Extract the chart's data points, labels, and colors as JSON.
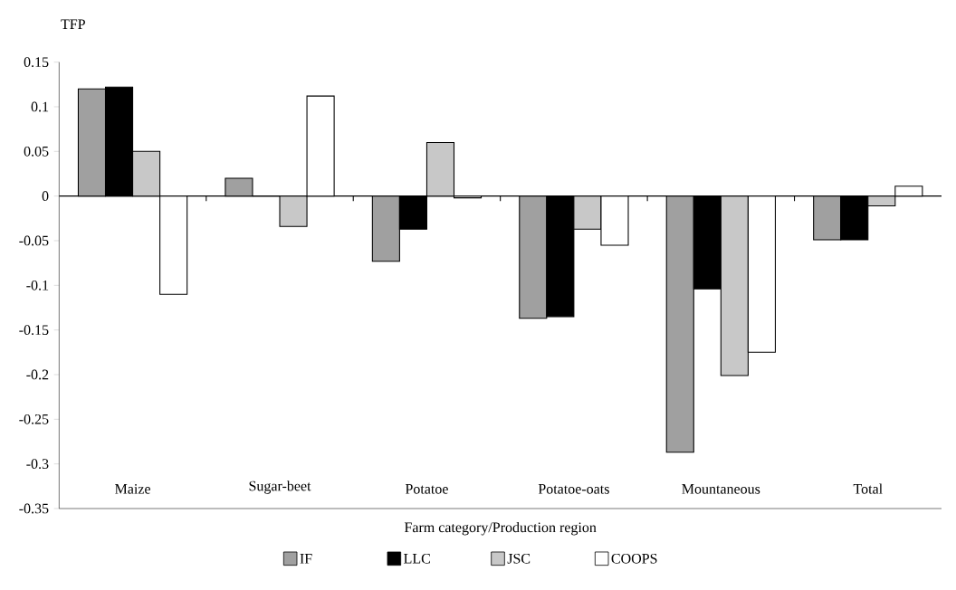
{
  "chart_data": {
    "type": "bar",
    "ylabel": "TFP",
    "xlabel": "Farm category/Production region",
    "categories": [
      "Maize",
      "Sugar-beet",
      "Potatoe",
      "Potatoe-oats",
      "Mountaneous",
      "Total"
    ],
    "series": [
      {
        "name": "IF",
        "color": "#a0a0a0",
        "values": [
          0.12,
          0.02,
          -0.073,
          -0.137,
          -0.287,
          -0.049
        ]
      },
      {
        "name": "LLC",
        "color": "#000000",
        "values": [
          0.122,
          0,
          -0.037,
          -0.135,
          -0.104,
          -0.049
        ]
      },
      {
        "name": "JSC",
        "color": "#c8c8c8",
        "values": [
          0.05,
          -0.034,
          0.06,
          -0.037,
          -0.201,
          -0.011
        ]
      },
      {
        "name": "COOPS",
        "color": "#ffffff",
        "values": [
          -0.11,
          0.112,
          -0.002,
          -0.055,
          -0.175,
          0.011
        ]
      }
    ],
    "ylim": [
      -0.35,
      0.15
    ],
    "yticks": [
      -0.35,
      -0.3,
      -0.25,
      -0.2,
      -0.15,
      -0.1,
      -0.05,
      0,
      0.05,
      0.1,
      0.15
    ],
    "legend": "bottom"
  }
}
